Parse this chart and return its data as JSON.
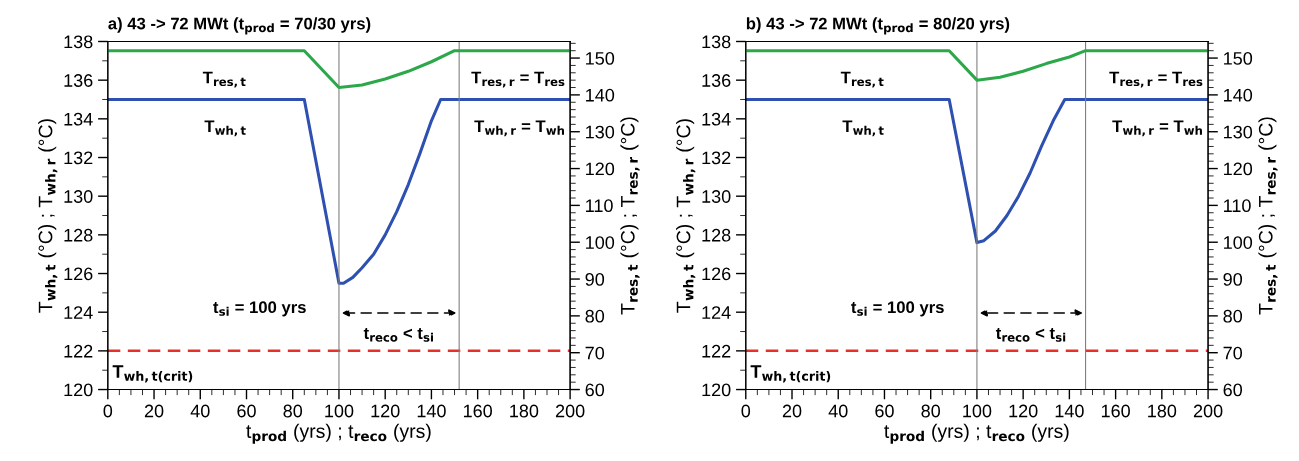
{
  "chart_data": [
    {
      "type": "line",
      "title": "a) 43 -> 72 MWt (t$_{prod}$ = 70/30 yrs)",
      "xlabel": "t$_{prod}$ (yrs) ; t$_{reco}$ (yrs)",
      "ylabel": "T$_{wh,t}$ (°C) ; T$_{wh,r}$ (°C)",
      "y2label": "T$_{res,t}$ (°C) ; T$_{res,r}$ (°C)",
      "xlim": [
        0,
        200
      ],
      "xticks": [
        0,
        20,
        40,
        60,
        80,
        100,
        120,
        140,
        160,
        180,
        200
      ],
      "ylim": [
        120,
        138
      ],
      "yticks": [
        120,
        122,
        124,
        126,
        128,
        130,
        132,
        134,
        136,
        138
      ],
      "y2lim": [
        60,
        154.5
      ],
      "y2ticks": [
        60,
        70,
        80,
        90,
        100,
        110,
        120,
        130,
        140,
        150
      ],
      "grid": false,
      "legend": false,
      "line_style": "solid",
      "series": [
        {
          "color": "#2e50b0",
          "x": [
            0,
            85,
            100,
            102,
            106,
            110,
            115,
            120,
            125,
            130,
            135,
            140,
            144,
            200
          ],
          "values": [
            135,
            135,
            125.5,
            125.5,
            125.8,
            126.3,
            127.0,
            128.0,
            129.2,
            130.6,
            132.2,
            133.9,
            135,
            135
          ]
        },
        {
          "color": "#2ca84a",
          "axis": "y2",
          "x": [
            0,
            85,
            100,
            110,
            120,
            130,
            140,
            150,
            200
          ],
          "values": [
            152,
            152,
            142,
            142.7,
            144.3,
            146.4,
            149,
            152,
            152
          ]
        }
      ],
      "ref_lines": [
        {
          "axis": "y",
          "value": 122,
          "label": "T$_{wh,t(crit)}$",
          "color": "#e8302a",
          "line_style": "dashed"
        },
        {
          "axis": "x",
          "value": 100,
          "color": "#808080"
        },
        {
          "axis": "x",
          "value": 152,
          "color": "#808080"
        }
      ],
      "annotations": [
        "T$_{res,t}$",
        "T$_{wh,t}$",
        "T$_{res,r}$ = T$_{res}$",
        "T$_{wh,r}$ = T$_{wh}$",
        "t$_{si}$ = 100 yrs",
        "t$_{reco}$ < t$_{si}$"
      ]
    },
    {
      "type": "line",
      "title": "b) 43 -> 72 MWt (t$_{prod}$ = 80/20 yrs)",
      "xlabel": "t$_{prod}$ (yrs) ; t$_{reco}$ (yrs)",
      "ylabel": "T$_{wh,t}$ (°C) ; T$_{wh,r}$ (°C)",
      "y2label": "T$_{res,t}$ (°C) ; T$_{res,r}$ (°C)",
      "xlim": [
        0,
        200
      ],
      "xticks": [
        0,
        20,
        40,
        60,
        80,
        100,
        120,
        140,
        160,
        180,
        200
      ],
      "ylim": [
        120,
        138
      ],
      "yticks": [
        120,
        122,
        124,
        126,
        128,
        130,
        132,
        134,
        136,
        138
      ],
      "y2lim": [
        60,
        154.5
      ],
      "y2ticks": [
        60,
        70,
        80,
        90,
        100,
        110,
        120,
        130,
        140,
        150
      ],
      "grid": false,
      "legend": false,
      "line_style": "solid",
      "series": [
        {
          "color": "#2e50b0",
          "x": [
            0,
            88,
            100,
            103,
            108,
            113,
            118,
            123,
            128,
            133,
            138,
            200
          ],
          "values": [
            135,
            135,
            127.6,
            127.7,
            128.2,
            129.0,
            130.0,
            131.2,
            132.6,
            133.9,
            135,
            135
          ]
        },
        {
          "color": "#2ca84a",
          "axis": "y2",
          "x": [
            0,
            88,
            100,
            110,
            120,
            130,
            140,
            147,
            200
          ],
          "values": [
            152,
            152,
            144,
            144.8,
            146.4,
            148.5,
            150.3,
            152,
            152
          ]
        }
      ],
      "ref_lines": [
        {
          "axis": "y",
          "value": 122,
          "label": "T$_{wh,t(crit)}$",
          "color": "#e8302a",
          "line_style": "dashed"
        },
        {
          "axis": "x",
          "value": 100,
          "color": "#808080"
        },
        {
          "axis": "x",
          "value": 147,
          "color": "#808080"
        }
      ],
      "annotations": [
        "T$_{res,t}$",
        "T$_{wh,t}$",
        "T$_{res,r}$ = T$_{res}$",
        "T$_{wh,r}$ = T$_{wh}$",
        "t$_{si}$ = 100 yrs",
        "t$_{reco}$ < t$_{si}$"
      ]
    }
  ]
}
